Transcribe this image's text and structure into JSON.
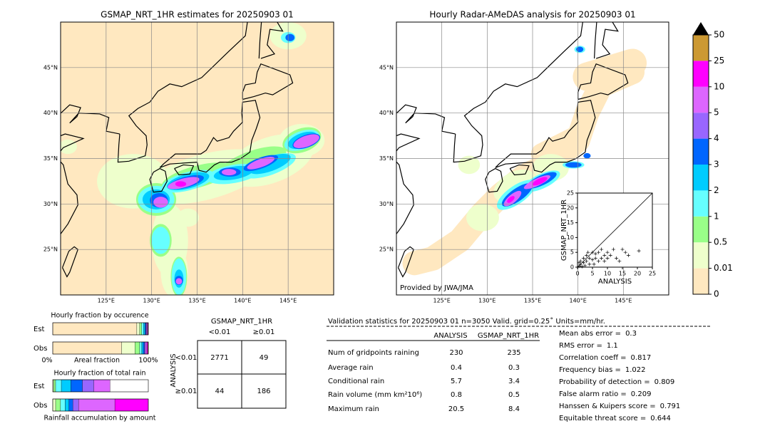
{
  "left_map": {
    "title": "GSMAP_NRT_1HR estimates for 20250903 01",
    "lon_lim": [
      120,
      150
    ],
    "lat_lim": [
      20,
      50
    ],
    "lat_ticks": [
      {
        "value": 45,
        "label": "45°N"
      },
      {
        "value": 40,
        "label": "40°N"
      },
      {
        "value": 35,
        "label": "35°N"
      },
      {
        "value": 30,
        "label": "30°N"
      },
      {
        "value": 25,
        "label": "25°N"
      }
    ],
    "lon_ticks": [
      {
        "value": 125,
        "label": "125°E"
      },
      {
        "value": 130,
        "label": "130°E"
      },
      {
        "value": 135,
        "label": "135°E"
      },
      {
        "value": 140,
        "label": "140°E"
      },
      {
        "value": 145,
        "label": "145°E"
      }
    ]
  },
  "right_map": {
    "title": "Hourly Radar-AMeDAS analysis for 20250903 01",
    "credit": "Provided by JWA/JMA",
    "lon_lim": [
      120,
      150
    ],
    "lat_lim": [
      20,
      50
    ],
    "lat_ticks": [
      {
        "value": 45,
        "label": "45°N"
      },
      {
        "value": 40,
        "label": "40°N"
      },
      {
        "value": 35,
        "label": "35°N"
      },
      {
        "value": 30,
        "label": "30°N"
      },
      {
        "value": 25,
        "label": "25°N"
      }
    ],
    "lon_ticks": [
      {
        "value": 125,
        "label": "125°E"
      },
      {
        "value": 130,
        "label": "130°E"
      },
      {
        "value": 135,
        "label": "135°E"
      },
      {
        "value": 140,
        "label": "140°E"
      },
      {
        "value": 145,
        "label": "145°E"
      }
    ]
  },
  "colorbar": {
    "ticks": [
      0,
      0.01,
      0.5,
      1,
      2,
      3,
      4,
      5,
      10,
      25,
      50
    ],
    "colors": [
      "#ffe8c0",
      "#eeffcc",
      "#99ff88",
      "#66ffff",
      "#00ccff",
      "#0066ff",
      "#9966ff",
      "#dd66ff",
      "#ff00ff",
      "#cc9933"
    ],
    "extend_color": "#000000"
  },
  "scatter": {
    "type": "scatter",
    "xlabel": "ANALYSIS",
    "ylabel": "GSMAP_NRT_1HR",
    "xlim": [
      0,
      25
    ],
    "ylim": [
      0,
      25
    ],
    "xticks": [
      0,
      5,
      10,
      15,
      20,
      25
    ],
    "yticks": [
      0,
      5,
      10,
      15,
      20,
      25
    ],
    "x": [
      0.5,
      1,
      1.5,
      2,
      2.5,
      3,
      3,
      4,
      4,
      5,
      5,
      5.5,
      6,
      6,
      7,
      7,
      8,
      8,
      9,
      9,
      10,
      10,
      11,
      12,
      13,
      14,
      15,
      16,
      17,
      20.5,
      2,
      3.5,
      1,
      0.5
    ],
    "y": [
      0.3,
      0.8,
      0.2,
      1.5,
      0.5,
      2,
      4,
      1,
      3,
      2.5,
      5,
      1,
      3,
      4.5,
      2,
      5,
      3,
      6,
      4,
      2,
      5,
      3,
      4,
      6,
      3,
      2,
      6,
      5,
      4,
      5.5,
      3,
      5,
      2,
      1.5
    ]
  },
  "occurrence": {
    "title": "Hourly fraction by occurence",
    "xlabel": "Areal fraction",
    "xmin_label": "0%",
    "xmax_label": "100%",
    "xlim": [
      0,
      100
    ],
    "rows": [
      {
        "name": "Est",
        "values": [
          88,
          3,
          2,
          2,
          1.5,
          1,
          0.7,
          0.8,
          0.6,
          0.4
        ]
      },
      {
        "name": "Obs",
        "values": [
          72,
          14,
          5,
          2,
          1.5,
          1.5,
          1,
          1.5,
          1,
          0.5
        ]
      }
    ]
  },
  "total_rain": {
    "title": "Hourly fraction of total rain",
    "xlabel": "Rainfall accumulation by amount",
    "xlim": [
      0,
      100
    ],
    "rows": [
      {
        "name": "Est",
        "values": [
          0,
          1,
          2,
          6,
          10,
          12,
          12,
          17,
          0,
          0
        ]
      },
      {
        "name": "Obs",
        "values": [
          0,
          3,
          5,
          5,
          4,
          4,
          6,
          38,
          35,
          0
        ]
      }
    ]
  },
  "contingency": {
    "title": "GSMAP_NRT_1HR",
    "row_title": "ANALYSIS",
    "col_labels": [
      "<0.01",
      "≥0.01"
    ],
    "row_labels": [
      "<0.01",
      "≥0.01"
    ],
    "cells": [
      [
        2771,
        49
      ],
      [
        44,
        186
      ]
    ]
  },
  "validation": {
    "title": "Validation statistics for 20250903 01  n=3050 Valid. grid=0.25˚ Units=mm/hr.",
    "columns": [
      "ANALYSIS",
      "GSMAP_NRT_1HR"
    ],
    "rows": [
      {
        "label": "Num of gridpoints raining",
        "values": [
          230,
          235
        ]
      },
      {
        "label": "Average rain",
        "values": [
          0.4,
          0.3
        ]
      },
      {
        "label": "Conditional rain",
        "values": [
          5.7,
          3.4
        ]
      },
      {
        "label": "Rain volume (mm km²10⁶)",
        "values": [
          0.8,
          0.5
        ]
      },
      {
        "label": "Maximum rain",
        "values": [
          20.5,
          8.4
        ]
      }
    ]
  },
  "scores": [
    {
      "label": "Mean abs error =",
      "value": 0.3
    },
    {
      "label": "RMS error =",
      "value": 1.1
    },
    {
      "label": "Correlation coeff =",
      "value": 0.817
    },
    {
      "label": "Frequency bias =",
      "value": 1.022
    },
    {
      "label": "Probability of detection =",
      "value": 0.809
    },
    {
      "label": "False alarm ratio =",
      "value": 0.209
    },
    {
      "label": "Hanssen & Kuipers score =",
      "value": 0.791
    },
    {
      "label": "Equitable threat score =",
      "value": 0.644
    }
  ]
}
